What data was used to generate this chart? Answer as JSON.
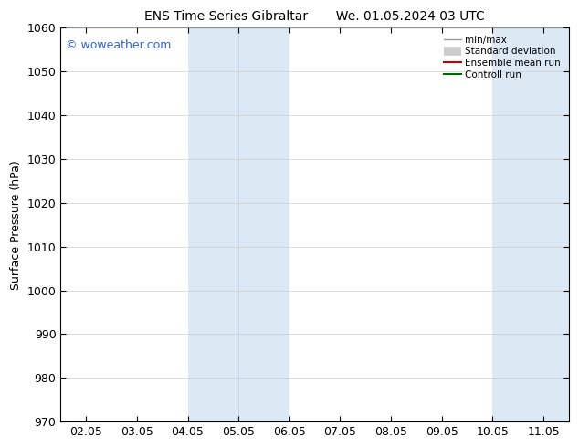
{
  "title": "ENS Time Series Gibraltar       We. 01.05.2024 03 UTC",
  "ylabel": "Surface Pressure (hPa)",
  "ylim": [
    970,
    1060
  ],
  "yticks": [
    970,
    980,
    990,
    1000,
    1010,
    1020,
    1030,
    1040,
    1050,
    1060
  ],
  "xtick_labels": [
    "02.05",
    "03.05",
    "04.05",
    "05.05",
    "06.05",
    "07.05",
    "08.05",
    "09.05",
    "10.05",
    "11.05"
  ],
  "x_values": [
    0,
    1,
    2,
    3,
    4,
    5,
    6,
    7,
    8,
    9
  ],
  "shaded_bands": [
    {
      "x_start": 2.0,
      "x_end": 3.0,
      "color": "#dce9f5"
    },
    {
      "x_start": 3.0,
      "x_end": 4.0,
      "color": "#dce9f5"
    },
    {
      "x_start": 8.0,
      "x_end": 9.5,
      "color": "#dce9f5"
    }
  ],
  "band_divider": 3.0,
  "watermark": "© woweather.com",
  "watermark_color": "#3366cc",
  "legend_items": [
    {
      "label": "min/max",
      "color": "#999999",
      "lw": 1.0,
      "style": "line"
    },
    {
      "label": "Standard deviation",
      "color": "#cccccc",
      "lw": 7,
      "style": "thick"
    },
    {
      "label": "Ensemble mean run",
      "color": "#cc0000",
      "lw": 1.5,
      "style": "line"
    },
    {
      "label": "Controll run",
      "color": "#006600",
      "lw": 1.5,
      "style": "line"
    }
  ],
  "background_color": "#ffffff",
  "plot_bg_color": "#ffffff",
  "border_color": "#000000",
  "grid_color": "#cccccc",
  "xlim": [
    -0.5,
    9.5
  ]
}
